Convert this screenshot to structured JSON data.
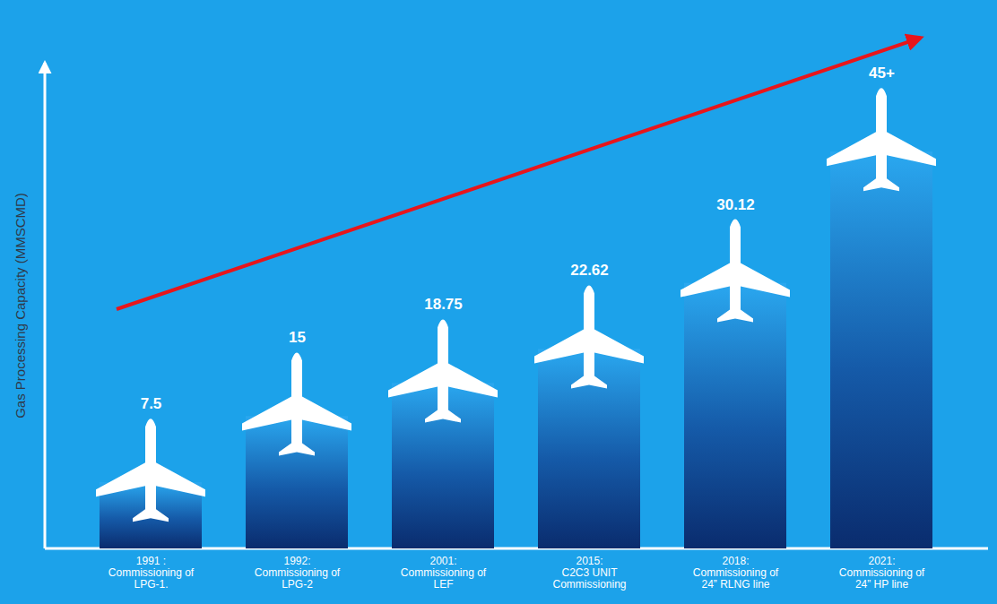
{
  "chart_data": {
    "type": "bar",
    "y_label": "Gas Processing Capacity (MMSCMD)",
    "categories": [
      "1991 :\nCommissioning of\nLPG-1.",
      "1992:\nCommissioning of\nLPG-2",
      "2001:\nCommissioning of\nLEF",
      "2015:\nC2C3 UNIT\nCommissioning",
      "2018:\nCommissioning of\n24” RLNG line",
      "2021:\nCommissioning of\n24” HP line"
    ],
    "values": [
      7.5,
      15,
      18.75,
      22.62,
      30.12,
      45
    ],
    "value_labels": [
      "7.5",
      "15",
      "18.75",
      "22.62",
      "30.12",
      "45+"
    ],
    "color": "#0a2c6e",
    "ylim": [
      0,
      50
    ],
    "yticks": [],
    "data_labels": true,
    "tick_labels": "x"
  }
}
